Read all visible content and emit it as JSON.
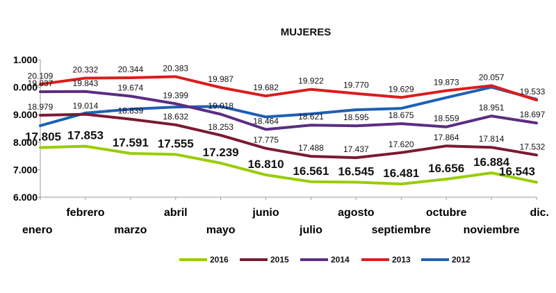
{
  "chart_data": {
    "type": "line",
    "title": "MUJERES",
    "xlabel": "",
    "ylabel": "",
    "categories": [
      "enero",
      "febrero",
      "marzo",
      "abril",
      "mayo",
      "junio",
      "julio",
      "agosto",
      "septiembre",
      "octubre",
      "noviembre",
      "dic."
    ],
    "y_tick_labels": [
      "1.000",
      "0.000",
      "9.000",
      "8.000",
      "7.000",
      "6.000"
    ],
    "ylim": [
      16000,
      21000
    ],
    "grid": false,
    "legend": "bottom",
    "series": [
      {
        "name": "2016",
        "color": "#99cc00",
        "values": [
          17805,
          17853,
          17591,
          17555,
          17239,
          16810,
          16561,
          16545,
          16481,
          16656,
          16884,
          16543
        ],
        "labels": [
          "17.805",
          "17.853",
          "17.591",
          "17.555",
          "17.239",
          "16.810",
          "16.561",
          "16.545",
          "16.481",
          "16.656",
          "16.884",
          "16.543"
        ]
      },
      {
        "name": "2015",
        "color": "#7b1a32",
        "values": [
          18979,
          19014,
          18839,
          18632,
          18253,
          17775,
          17488,
          17437,
          17620,
          17864,
          17814,
          17532
        ],
        "labels": [
          "18.979",
          "19.014",
          "18.839",
          "18.632",
          "18.253",
          "17.775",
          "17.488",
          "17.437",
          "17.620",
          "17.864",
          "17.814",
          "17.532"
        ]
      },
      {
        "name": "2014",
        "color": "#5b2d82",
        "values": [
          19837,
          19843,
          19674,
          19399,
          19018,
          18464,
          18621,
          18595,
          18675,
          18559,
          18951,
          18697
        ],
        "labels": [
          "19.837",
          "19.843",
          "19.674",
          "19.399",
          "19.018",
          "18.464",
          "18.621",
          "18.595",
          "18.675",
          "18.559",
          "18.951",
          "18.697"
        ]
      },
      {
        "name": "2013",
        "color": "#dd1c1c",
        "values": [
          20109,
          20332,
          20344,
          20383,
          19987,
          19682,
          19922,
          19770,
          19629,
          19873,
          20057,
          19533
        ],
        "labels": [
          "20.109",
          "20.332",
          "20.344",
          "20.383",
          "19.987",
          "19.682",
          "19.922",
          "19.770",
          "19.629",
          "19.873",
          "20.057",
          "19.533"
        ]
      },
      {
        "name": "2012",
        "color": "#1f5fb4",
        "values": [
          18600,
          19060,
          19200,
          19280,
          19300,
          18920,
          19030,
          19180,
          19230,
          19620,
          20000,
          19560
        ],
        "labels": []
      }
    ]
  }
}
